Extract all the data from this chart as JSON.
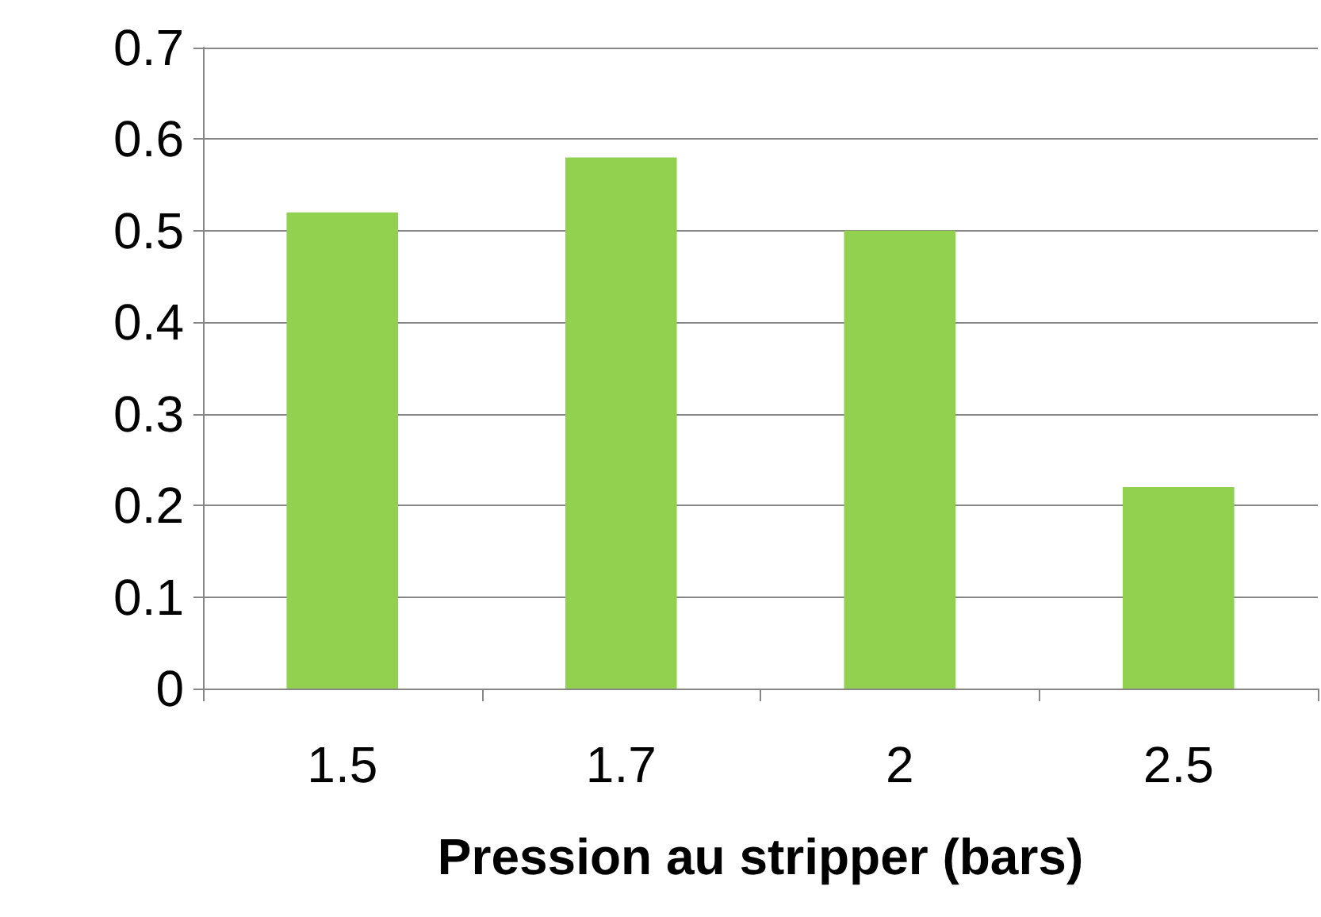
{
  "chart_data": {
    "type": "bar",
    "xlabel": "Pression au stripper (bars)",
    "categories": [
      "1.5",
      "1.7",
      "2",
      "2.5"
    ],
    "values": [
      0.52,
      0.58,
      0.5,
      0.22
    ],
    "color": "#92d050",
    "ylim": [
      0,
      0.7
    ],
    "yticks": [
      0,
      0.1,
      0.2,
      0.3,
      0.4,
      0.5,
      0.6,
      0.7
    ],
    "grid": "y"
  }
}
